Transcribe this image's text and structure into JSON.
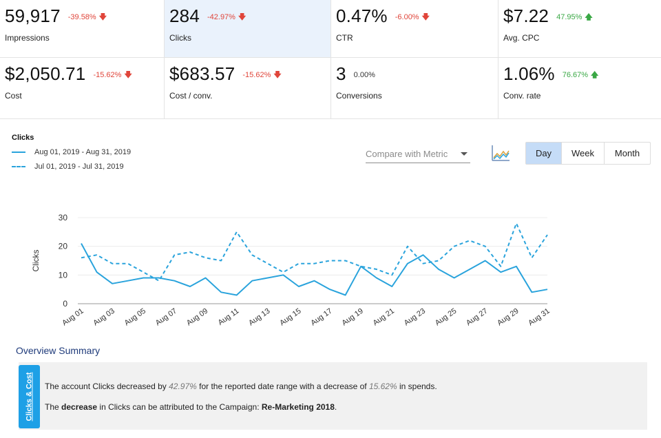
{
  "kpis": [
    {
      "value": "59,917",
      "change": "-39.58%",
      "dir": "down",
      "label": "Impressions"
    },
    {
      "value": "284",
      "change": "-42.97%",
      "dir": "down",
      "label": "Clicks"
    },
    {
      "value": "0.47%",
      "change": "-6.00%",
      "dir": "down",
      "label": "CTR"
    },
    {
      "value": "$7.22",
      "change": "47.95%",
      "dir": "up",
      "label": "Avg. CPC"
    },
    {
      "value": "$2,050.71",
      "change": "-15.62%",
      "dir": "down",
      "label": "Cost"
    },
    {
      "value": "$683.57",
      "change": "-15.62%",
      "dir": "down",
      "label": "Cost / conv."
    },
    {
      "value": "3",
      "change": "0.00%",
      "dir": "none",
      "label": "Conversions"
    },
    {
      "value": "1.06%",
      "change": "76.67%",
      "dir": "up",
      "label": "Conv. rate"
    }
  ],
  "legend": {
    "metric": "Clicks",
    "current": "Aug 01, 2019 - Aug 31, 2019",
    "previous": "Jul 01, 2019 - Jul 31, 2019"
  },
  "controls": {
    "compare_placeholder": "Compare with Metric",
    "chart_icon": "line-chart-icon",
    "periods": [
      "Day",
      "Week",
      "Month"
    ],
    "active_period": "Day"
  },
  "colors": {
    "series": "#29a3dc",
    "negative": "#e0453a",
    "positive": "#3aa845",
    "active_tile": "#eaf2fc"
  },
  "chart_data": {
    "type": "line",
    "ylabel": "Clicks",
    "ylim": [
      0,
      30
    ],
    "yticks": [
      0,
      10,
      20,
      30
    ],
    "x": [
      "Aug 01",
      "Aug 02",
      "Aug 03",
      "Aug 04",
      "Aug 05",
      "Aug 06",
      "Aug 07",
      "Aug 08",
      "Aug 09",
      "Aug 10",
      "Aug 11",
      "Aug 12",
      "Aug 13",
      "Aug 14",
      "Aug 15",
      "Aug 16",
      "Aug 17",
      "Aug 18",
      "Aug 19",
      "Aug 20",
      "Aug 21",
      "Aug 22",
      "Aug 23",
      "Aug 24",
      "Aug 25",
      "Aug 26",
      "Aug 27",
      "Aug 28",
      "Aug 29",
      "Aug 30",
      "Aug 31"
    ],
    "tick_labels": [
      "Aug 01",
      "Aug 03",
      "Aug 05",
      "Aug 07",
      "Aug 09",
      "Aug 11",
      "Aug 13",
      "Aug 15",
      "Aug 17",
      "Aug 19",
      "Aug 21",
      "Aug 23",
      "Aug 25",
      "Aug 27",
      "Aug 29",
      "Aug 31"
    ],
    "grid": true,
    "series": [
      {
        "name": "Aug 01, 2019 - Aug 31, 2019",
        "style": "solid",
        "values": [
          21,
          11,
          7,
          8,
          9,
          9,
          8,
          6,
          9,
          4,
          3,
          8,
          9,
          10,
          6,
          8,
          5,
          3,
          13,
          9,
          6,
          14,
          17,
          12,
          9,
          12,
          15,
          11,
          13,
          4,
          5
        ]
      },
      {
        "name": "Jul 01, 2019 - Jul 31, 2019",
        "style": "dashed",
        "values": [
          16,
          17,
          14,
          14,
          11,
          8,
          17,
          18,
          16,
          15,
          25,
          17,
          14,
          11,
          14,
          14,
          15,
          15,
          13,
          12,
          10,
          20,
          14,
          15,
          20,
          22,
          20,
          13,
          28,
          16,
          24
        ]
      }
    ]
  },
  "overview": {
    "title": "Overview Summary",
    "tab": "Clicks & Cost",
    "line1_a": "The account Clicks decreased by ",
    "line1_b": "42.97%",
    "line1_c": " for the reported date range with a decrease of ",
    "line1_d": "15.62%",
    "line1_e": " in spends.",
    "line2_a": "The ",
    "line2_b": "decrease",
    "line2_c": " in Clicks can be attributed to the Campaign: ",
    "line2_d": "Re-Marketing 2018",
    "line2_e": "."
  }
}
